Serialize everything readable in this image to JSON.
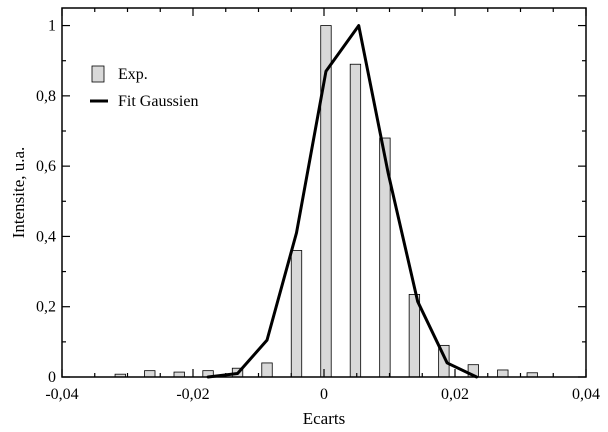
{
  "chart_data": {
    "type": "bar",
    "title": "",
    "xlabel": "Ecarts",
    "ylabel": "Intensite, u.a.",
    "xlim": [
      -0.04,
      0.04
    ],
    "ylim": [
      0,
      1.05
    ],
    "xticks": [
      -0.04,
      -0.02,
      0,
      0.02,
      0.04
    ],
    "xtick_labels": [
      "-0,04",
      "-0,02",
      "0",
      "0,02",
      "0,04"
    ],
    "yticks": [
      0,
      0.2,
      0.4,
      0.6,
      0.8,
      1
    ],
    "ytick_labels": [
      "0",
      "0,2",
      "0,4",
      "0,6",
      "0,8",
      "1"
    ],
    "grid": false,
    "legend_position": "top-left",
    "bar_width": 0.0016,
    "series": [
      {
        "name": "Exp.",
        "kind": "bar",
        "color": "#d9d9d9",
        "x": [
          -0.0311,
          -0.0266,
          -0.0221,
          -0.0177,
          -0.0132,
          -0.0087,
          -0.0042,
          0.0003,
          0.0048,
          0.0093,
          0.0138,
          0.0183,
          0.0228,
          0.0273,
          0.0318
        ],
        "y": [
          0.008,
          0.018,
          0.014,
          0.018,
          0.025,
          0.04,
          0.36,
          1.0,
          0.89,
          0.68,
          0.235,
          0.09,
          0.035,
          0.02,
          0.012
        ]
      },
      {
        "name": "Fit Gaussien",
        "kind": "line",
        "color": "#000000",
        "x": [
          -0.0177,
          -0.0132,
          -0.0087,
          -0.0042,
          0.0003,
          0.0053,
          0.0098,
          0.0143,
          0.0188,
          0.0233
        ],
        "y": [
          0.0,
          0.01,
          0.105,
          0.41,
          0.87,
          1.0,
          0.58,
          0.215,
          0.04,
          0.0
        ]
      }
    ]
  }
}
